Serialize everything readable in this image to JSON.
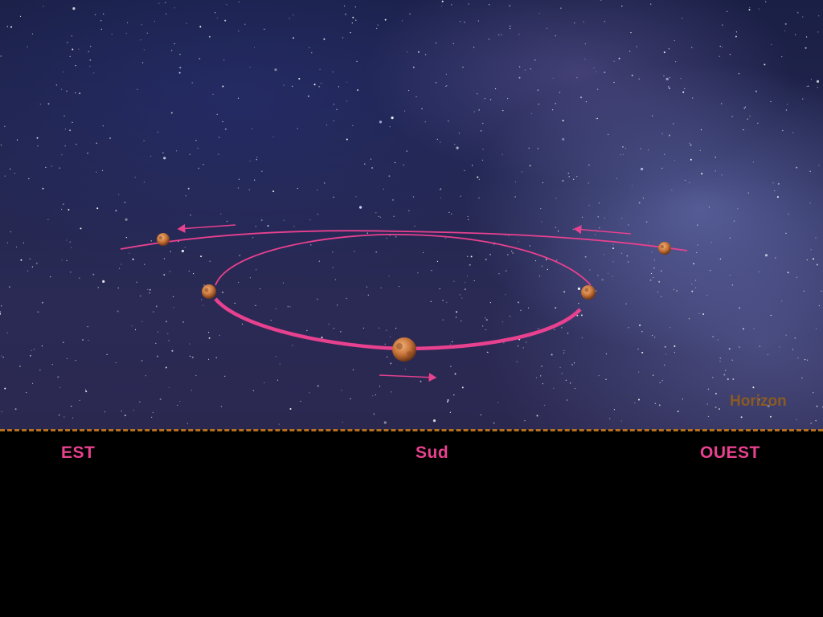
{
  "labels": {
    "east": "EST",
    "south": "Sud",
    "west": "OUEST",
    "horizon": "Horizon"
  },
  "colors": {
    "path": "#e8418f",
    "horizon": "#b5701e",
    "horizon_text": "#8a5a22",
    "planet": "#c9753a",
    "ground": "#000000"
  },
  "planet_positions": [
    "east-start",
    "loop-east",
    "loop-bottom",
    "loop-west",
    "west-end"
  ],
  "icons": {
    "planet": "mars-icon",
    "arrow": "arrow-icon"
  }
}
